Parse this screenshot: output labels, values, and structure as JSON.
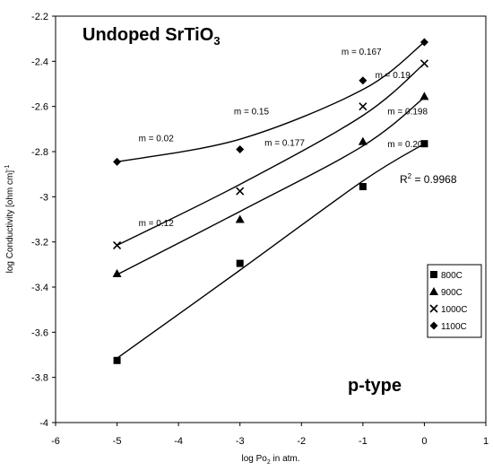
{
  "chart_data": {
    "type": "scatter",
    "title": {
      "main": "Undoped SrTiO",
      "sub": "3"
    },
    "xlabel": {
      "pre": "log Po",
      "sub": "2",
      "post": " in atm."
    },
    "ylabel": {
      "pre": "log Conductivity [ohm cm]",
      "sup": "-1"
    },
    "xlim": [
      -6,
      1
    ],
    "ylim": [
      -4,
      -2.2
    ],
    "xticks": [
      "-6",
      "-5",
      "-4",
      "-3",
      "-2",
      "-1",
      "0",
      "1"
    ],
    "yticks": [
      "-4",
      "-3.8",
      "-3.6",
      "-3.4",
      "-3.2",
      "-3",
      "-2.8",
      "-2.6",
      "-2.4",
      "-2.2"
    ],
    "grid": false,
    "legend_position": "right",
    "series": [
      {
        "name": "800C",
        "marker": "square",
        "x": [
          -5,
          -3,
          -1,
          0
        ],
        "y": [
          -3.725,
          -3.295,
          -2.955,
          -2.765
        ],
        "fit": [
          -3.715,
          -3.325,
          -2.93,
          -2.765
        ]
      },
      {
        "name": "900C",
        "marker": "triangle",
        "x": [
          -5,
          -3,
          -1,
          0
        ],
        "y": [
          -3.34,
          -3.1,
          -2.755,
          -2.555
        ],
        "fit": [
          -3.345,
          -3.065,
          -2.775,
          -2.56
        ]
      },
      {
        "name": "1000C",
        "marker": "x",
        "x": [
          -5,
          -3,
          -1,
          0
        ],
        "y": [
          -3.215,
          -2.975,
          -2.6,
          -2.41
        ],
        "fit": [
          -3.215,
          -2.945,
          -2.64,
          -2.41
        ]
      },
      {
        "name": "1100C",
        "marker": "diamond",
        "x": [
          -5,
          -3,
          -1,
          0
        ],
        "y": [
          -2.845,
          -2.79,
          -2.485,
          -2.315
        ],
        "fit": [
          -2.845,
          -2.745,
          -2.525,
          -2.315
        ]
      }
    ],
    "annotations": [
      {
        "text": "m = 0.167",
        "x": -1.35,
        "y": -2.37
      },
      {
        "text": "m = 0.19",
        "x": -0.8,
        "y": -2.475
      },
      {
        "text": "m = 0.15",
        "x": -3.1,
        "y": -2.635
      },
      {
        "text": "m = 0.198",
        "x": -0.6,
        "y": -2.635
      },
      {
        "text": "m = 0.02",
        "x": -4.65,
        "y": -2.755
      },
      {
        "text": "m = 0.177",
        "x": -2.6,
        "y": -2.775
      },
      {
        "text": "m = 0.20",
        "x": -0.6,
        "y": -2.78
      },
      {
        "text": "m = 0.12",
        "x": -4.65,
        "y": -3.13
      }
    ],
    "r2": {
      "pre": "R",
      "sup": "2",
      "post": " = 0.9968"
    },
    "label": "p-type"
  }
}
